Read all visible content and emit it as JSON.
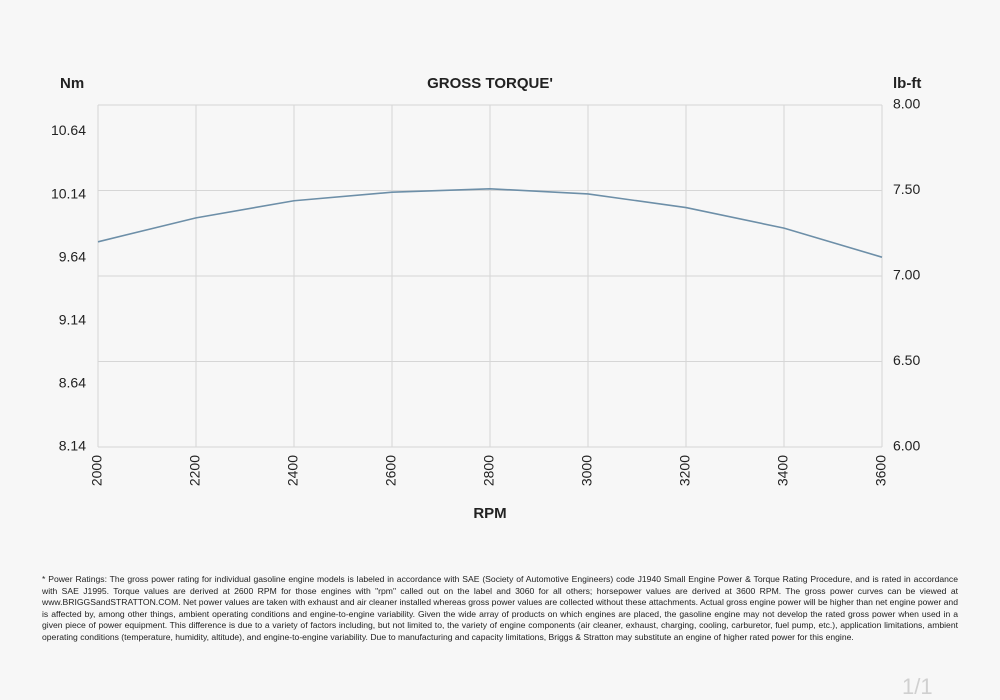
{
  "chart_data": {
    "type": "line",
    "title": "GROSS TORQUE'",
    "x_label": "RPM",
    "y_label": "Nm",
    "y2_label": "lb-ft",
    "x": [
      2000,
      2200,
      2400,
      2600,
      2800,
      3000,
      3200,
      3400,
      3600
    ],
    "series": [
      {
        "name": "Gross torque",
        "color": "#6d8fa8",
        "axis": "y2",
        "values": [
          7.2,
          7.34,
          7.44,
          7.49,
          7.51,
          7.48,
          7.4,
          7.28,
          7.11
        ]
      }
    ],
    "xlim": [
      2000,
      3600
    ],
    "xticks": [
      2000,
      2200,
      2400,
      2600,
      2800,
      3000,
      3200,
      3400,
      3600
    ],
    "ylim": [
      8.14,
      10.85
    ],
    "yticks": [
      8.14,
      8.64,
      9.14,
      9.64,
      10.14,
      10.64
    ],
    "y2lim": [
      6,
      8
    ],
    "y2ticks": [
      {
        "value": 6,
        "label": "6.00"
      },
      {
        "value": 6.5,
        "label": "6.50"
      },
      {
        "value": 7,
        "label": "7.00"
      },
      {
        "value": 7.5,
        "label": "7.50"
      },
      {
        "value": 8,
        "label": "8.00"
      }
    ],
    "grid": true
  },
  "footnote": "* Power Ratings: The gross power rating for individual gasoline engine models is labeled in accordance with SAE (Society of Automotive Engineers) code J1940 Small Engine Power & Torque Rating Procedure, and is rated in accordance with SAE J1995. Torque values are derived at 2600 RPM for those engines with \"rpm\" called out on the label and 3060 for all others; horsepower values are derived at 3600 RPM. The gross power curves can be viewed at www.BRIGGSandSTRATTON.COM. Net power values are taken with exhaust and air cleaner installed whereas gross power values are collected without these attachments. Actual gross engine power will be higher than net engine power and is affected by, among other things, ambient operating conditions and engine-to-engine variability. Given the wide array of products on which engines are placed, the gasoline engine may not develop the rated gross power when used in a given piece of power equipment. This difference is due to a variety of factors including, but not limited to, the variety of engine components (air cleaner, exhaust, charging, cooling, carburetor, fuel pump, etc.), application limitations, ambient operating conditions (temperature, humidity, altitude), and engine-to-engine variability. Due to manufacturing and capacity limitations, Briggs & Stratton may substitute an engine of higher rated power for this engine.",
  "page_number": "1/1"
}
